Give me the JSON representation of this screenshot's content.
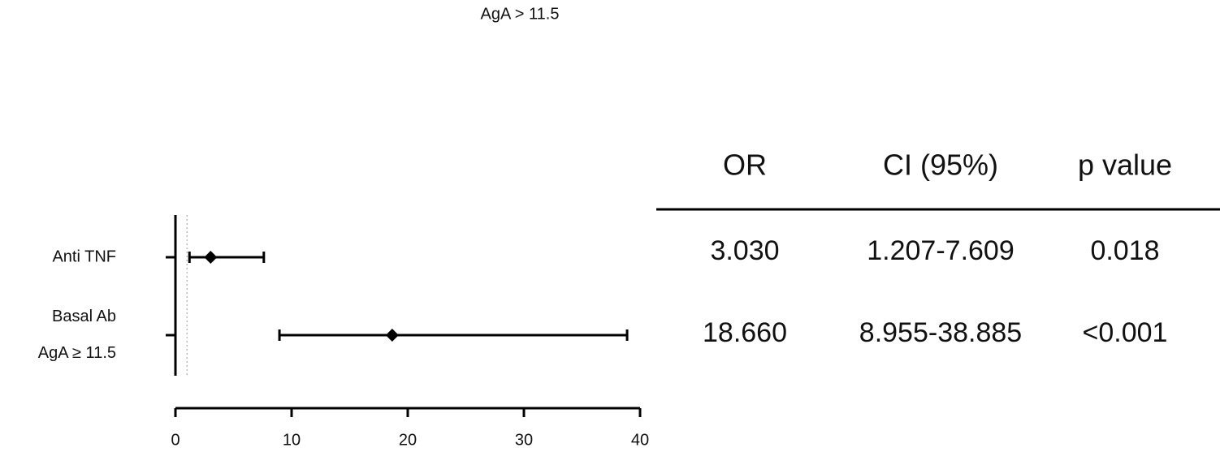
{
  "chart_data": {
    "type": "forest",
    "annotation": "AgA  > 11.5",
    "categories": [
      [
        "Anti TNF"
      ],
      [
        "Basal Ab",
        "AgA  ≥ 11.5"
      ]
    ],
    "values": [
      3.03,
      18.66
    ],
    "value_labels": [
      "3.030",
      "18.660"
    ],
    "lower": [
      1.207,
      8.955
    ],
    "upper": [
      7.609,
      38.885
    ],
    "ci_labels": [
      "1.207-7.609",
      "8.955-38.885"
    ],
    "p_values": [
      "0.018",
      "<0.001"
    ],
    "table_headers": [
      "OR",
      "CI (95%)",
      "p value"
    ],
    "reference_line": 1,
    "color": "#000000",
    "xlim": [
      0,
      40
    ],
    "xticks": [
      0,
      10,
      20,
      30,
      40
    ]
  }
}
